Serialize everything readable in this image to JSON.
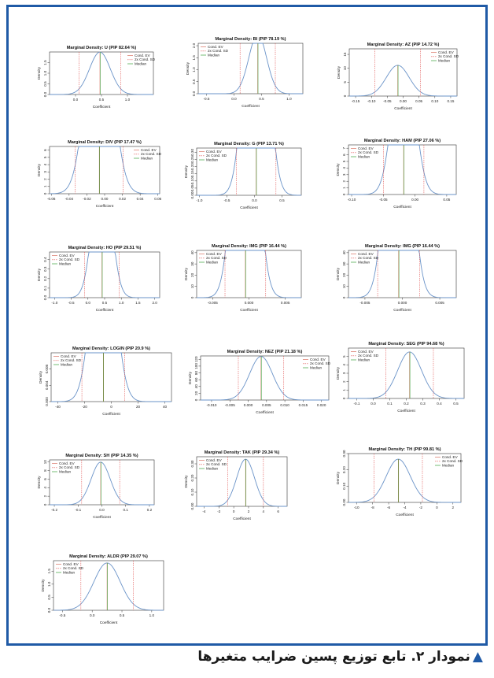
{
  "caption": "نمودار ۲. تابع توزیع پسین ضرایب متغیرها",
  "caption_marker": "▲",
  "colors": {
    "frame": "#1f5aa6",
    "density": "#6a93c8",
    "ev": "#d97060",
    "sd": "#e0504f",
    "median": "#3ca03c"
  },
  "chart_data": [
    {
      "type": "line",
      "title": "Marginal Density: U (PIP 82.64 %)",
      "xlabel": "Coefficient",
      "ylabel": "Density",
      "legend_position": "top-right",
      "legend": [
        "Cond. EV",
        "2x Cond. SD",
        "Median"
      ],
      "mean": 0.47,
      "sd": 0.2,
      "xlim": [
        -0.5,
        1.5
      ],
      "xticks": [
        "0.0",
        "0.5",
        "1.0"
      ],
      "xtick_values": [
        0,
        0.5,
        1.0
      ],
      "ylim": [
        0,
        2.0
      ],
      "yticks": [
        "0.0",
        "0.5",
        "1.0",
        "1.5"
      ],
      "ytick_values": [
        0,
        0.5,
        1.0,
        1.5
      ]
    },
    {
      "type": "line",
      "title": "Marginal Density: BI (PIP 78.19 %)",
      "xlabel": "Coefficient",
      "ylabel": "Density",
      "legend_position": "top-left",
      "legend": [
        "Cond. EV",
        "2x Cond. SD",
        "Median"
      ],
      "mean": 0.43,
      "sd": 0.16,
      "xlim": [
        -0.65,
        1.25
      ],
      "xticks": [
        "-0.5",
        "0.0",
        "0.5",
        "1.0"
      ],
      "xtick_values": [
        -0.5,
        0,
        0.5,
        1.0
      ],
      "ylim": [
        0,
        2.1
      ],
      "yticks": [
        "0.0",
        "0.5",
        "1.0",
        "1.5",
        "2.0"
      ],
      "ytick_values": [
        0,
        0.5,
        1.0,
        1.5,
        2.0
      ]
    },
    {
      "type": "line",
      "title": "Marginal Density: AZ (PIP 14.72 %)",
      "xlabel": "Coefficient",
      "ylabel": "Density",
      "legend_position": "top-right",
      "legend": [
        "Cond. EV",
        "2x Cond. SD",
        "Median"
      ],
      "mean": -0.017,
      "sd": 0.036,
      "xlim": [
        -0.17,
        0.17
      ],
      "xticks": [
        "-0.15",
        "-0.10",
        "-0.05",
        "0.00",
        "0.05",
        "0.10",
        "0.15"
      ],
      "xtick_values": [
        -0.15,
        -0.1,
        -0.05,
        0,
        0.05,
        0.1,
        0.15
      ],
      "ylim": [
        0,
        17
      ],
      "yticks": [
        "0",
        "5",
        "10",
        "15"
      ],
      "ytick_values": [
        0,
        5,
        10,
        15
      ]
    },
    {
      "type": "line",
      "title": "Marginal Density: DIV (PIP 17.47 %)",
      "xlabel": "Coefficient",
      "ylabel": "Density",
      "legend_position": "top-right",
      "legend": [
        "Cond. EV",
        "2x Cond. SD",
        "Median"
      ],
      "mean": -0.006,
      "sd": 0.0135,
      "xlim": [
        -0.062,
        0.062
      ],
      "xticks": [
        "-0.06",
        "-0.04",
        "-0.02",
        "0.00",
        "0.02",
        "0.04",
        "0.06"
      ],
      "xtick_values": [
        -0.06,
        -0.04,
        -0.02,
        0,
        0.02,
        0.04,
        0.06
      ],
      "ylim": [
        0,
        6.5
      ],
      "yticks": [
        "0",
        "1",
        "2",
        "3",
        "4",
        "5",
        "6"
      ],
      "ytick_values": [
        0,
        1,
        2,
        3,
        4,
        5,
        6
      ]
    },
    {
      "type": "line",
      "title": "Marginal Density: G (PIP 13.71 %)",
      "xlabel": "Coefficient",
      "ylabel": "Density",
      "legend_position": "top-left",
      "legend": [
        "Cond. EV",
        "2x Cond. SD",
        "Median"
      ],
      "mean": 0.03,
      "sd": 0.18,
      "xlim": [
        -1.05,
        0.85
      ],
      "xticks": [
        "-1.0",
        "-0.5",
        "0.0",
        "0.5"
      ],
      "xtick_values": [
        -1.0,
        -0.5,
        0,
        0.5
      ],
      "ylim": [
        0,
        0.33
      ],
      "yticks": [
        "0.00",
        "0.05",
        "0.10",
        "0.15",
        "0.20",
        "0.25",
        "0.30"
      ],
      "ytick_values": [
        0,
        0.05,
        0.1,
        0.15,
        0.2,
        0.25,
        0.3
      ]
    },
    {
      "type": "line",
      "title": "Marginal Density: HAM (PIP 27.06 %)",
      "xlabel": "Coefficient",
      "ylabel": "Density",
      "legend_position": "top-left",
      "legend": [
        "Cond. EV",
        "2x Cond. SD",
        "Median"
      ],
      "mean": -0.018,
      "sd": 0.016,
      "xlim": [
        -0.105,
        0.065
      ],
      "xticks": [
        "-0.10",
        "-0.05",
        "0.00",
        "0.05"
      ],
      "xtick_values": [
        -0.1,
        -0.05,
        0,
        0.05
      ],
      "ylim": [
        0,
        7.5
      ],
      "yticks": [
        "0",
        "1",
        "2",
        "3",
        "4",
        "5",
        "6",
        "7"
      ],
      "ytick_values": [
        0,
        1,
        2,
        3,
        4,
        5,
        6,
        7
      ]
    },
    {
      "type": "line",
      "title": "Marginal Density: HO (PIP 29.51 %)",
      "xlabel": "Coefficient",
      "ylabel": "Density",
      "legend_position": "top-left",
      "legend": [
        "Cond. EV",
        "2x Cond. SD",
        "Median"
      ],
      "mean": 0.42,
      "sd": 0.26,
      "xlim": [
        -1.15,
        2.15
      ],
      "xticks": [
        "-1.0",
        "-0.5",
        "0.0",
        "0.5",
        "1.0",
        "1.5",
        "2.0"
      ],
      "xtick_values": [
        -1.0,
        -0.5,
        0,
        0.5,
        1.0,
        1.5,
        2.0
      ],
      "ylim": [
        0,
        0.48
      ],
      "yticks": [
        "0.0",
        "0.1",
        "0.2",
        "0.3",
        "0.4"
      ],
      "ytick_values": [
        0,
        0.1,
        0.2,
        0.3,
        0.4
      ]
    },
    {
      "type": "line",
      "title": "Marginal Density: IMG (PIP 16.44 %)",
      "xlabel": "Coefficient",
      "ylabel": "Density",
      "legend_position": "top-left",
      "legend": [
        "Cond. EV",
        "2x Cond. SD",
        "Median"
      ],
      "mean": -0.0005,
      "sd": 0.0014,
      "xlim": [
        -0.0072,
        0.0072
      ],
      "xticks": [
        "-0.005",
        "0.000",
        "0.005"
      ],
      "xtick_values": [
        -0.005,
        0,
        0.005
      ],
      "ylim": [
        0,
        42
      ],
      "yticks": [
        "0",
        "10",
        "20",
        "30",
        "40"
      ],
      "ytick_values": [
        0,
        10,
        20,
        30,
        40
      ]
    },
    {
      "type": "line",
      "title": "Marginal Density: IMG (PIP 16.44 %)",
      "xlabel": "Coefficient",
      "ylabel": "Density",
      "legend_position": "top-left",
      "legend": [
        "Cond. EV",
        "2x Cond. SD",
        "Median"
      ],
      "mean": -0.0005,
      "sd": 0.0014,
      "xlim": [
        -0.0072,
        0.0072
      ],
      "xticks": [
        "-0.005",
        "0.000",
        "0.005"
      ],
      "xtick_values": [
        -0.005,
        0,
        0.005
      ],
      "ylim": [
        0,
        42
      ],
      "yticks": [
        "0",
        "10",
        "20",
        "30",
        "40"
      ],
      "ytick_values": [
        0,
        10,
        20,
        30,
        40
      ]
    },
    {
      "type": "line",
      "title": "Marginal Density: LOGIN (PIP 20.9 %)",
      "xlabel": "Coefficient",
      "ylabel": "Density",
      "legend_position": "top-left",
      "legend": [
        "Cond. EV",
        "2x Cond. SD",
        "Median"
      ],
      "mean": -6,
      "sd": 8,
      "xlim": [
        -45,
        45
      ],
      "xticks": [
        "-40",
        "-20",
        "0",
        "20",
        "40"
      ],
      "xtick_values": [
        -40,
        -20,
        0,
        20,
        40
      ],
      "ylim": [
        0,
        0.012
      ],
      "yticks": [
        "0.000",
        "0.004",
        "0.008"
      ],
      "ytick_values": [
        0,
        0.004,
        0.008
      ]
    },
    {
      "type": "line",
      "title": "Marginal Density: NEZ (PIP 21.18 %)",
      "xlabel": "Coefficient",
      "ylabel": "Density",
      "legend_position": "top-right",
      "legend": [
        "Cond. EV",
        "2x Cond. SD",
        "Median"
      ],
      "mean": 0.0035,
      "sd": 0.0031,
      "xlim": [
        -0.013,
        0.022
      ],
      "xticks": [
        "-0.010",
        "-0.005",
        "0.000",
        "0.005",
        "0.010",
        "0.015",
        "0.020"
      ],
      "xtick_values": [
        -0.01,
        -0.005,
        0,
        0.005,
        0.01,
        0.015,
        0.02
      ],
      "ylim": [
        0,
        130
      ],
      "yticks": [
        "0",
        "20",
        "40",
        "60",
        "80",
        "100",
        "120"
      ],
      "ytick_values": [
        0,
        20,
        40,
        60,
        80,
        100,
        120
      ]
    },
    {
      "type": "line",
      "title": "Marginal Density: SEG (PIP 94.68 %)",
      "xlabel": "Coefficient",
      "ylabel": "Density",
      "legend_position": "top-left",
      "legend": [
        "Cond. EV",
        "2x Cond. SD",
        "Median"
      ],
      "mean": 0.22,
      "sd": 0.072,
      "xlim": [
        -0.15,
        0.55
      ],
      "xticks": [
        "-0.1",
        "0.0",
        "0.1",
        "0.2",
        "0.3",
        "0.4",
        "0.5"
      ],
      "xtick_values": [
        -0.1,
        0,
        0.1,
        0.2,
        0.3,
        0.4,
        0.5
      ],
      "ylim": [
        0,
        6
      ],
      "yticks": [
        "0",
        "1",
        "2",
        "3",
        "4",
        "5"
      ],
      "ytick_values": [
        0,
        1,
        2,
        3,
        4,
        5
      ]
    },
    {
      "type": "line",
      "title": "Marginal Density: SH (PIP 14.35 %)",
      "xlabel": "Coefficient",
      "ylabel": "Density",
      "legend_position": "top-left",
      "legend": [
        "Cond. EV",
        "2x Cond. SD",
        "Median"
      ],
      "mean": -0.005,
      "sd": 0.04,
      "xlim": [
        -0.22,
        0.22
      ],
      "xticks": [
        "-0.2",
        "-0.1",
        "0.0",
        "0.1",
        "0.2"
      ],
      "xtick_values": [
        -0.2,
        -0.1,
        0,
        0.1,
        0.2
      ],
      "ylim": [
        0,
        10.5
      ],
      "yticks": [
        "0",
        "2",
        "4",
        "6",
        "8",
        "10"
      ],
      "ytick_values": [
        0,
        2,
        4,
        6,
        8,
        10
      ]
    },
    {
      "type": "line",
      "title": "Marginal Density: TAK (PIP 29.34 %)",
      "xlabel": "Coefficient",
      "ylabel": "Density",
      "legend_position": "top-left",
      "legend": [
        "Cond. EV",
        "2x Cond. SD",
        "Median"
      ],
      "mean": 1.6,
      "sd": 1.2,
      "xlim": [
        -5,
        7.2
      ],
      "xticks": [
        "-4",
        "-2",
        "0",
        "2",
        "4",
        "6"
      ],
      "xtick_values": [
        -4,
        -2,
        0,
        2,
        4,
        6
      ],
      "ylim": [
        0,
        0.35
      ],
      "yticks": [
        "0.00",
        "0.10",
        "0.20",
        "0.30"
      ],
      "ytick_values": [
        0,
        0.1,
        0.2,
        0.3
      ]
    },
    {
      "type": "line",
      "title": "Marginal Density: TH (PIP 99.81 %)",
      "xlabel": "Coefficient",
      "ylabel": "Density",
      "legend_position": "top-right",
      "legend": [
        "Cond. EV",
        "2x Cond. SD",
        "Median"
      ],
      "mean": -4.8,
      "sd": 1.5,
      "xlim": [
        -11,
        3
      ],
      "xticks": [
        "-10",
        "-8",
        "-6",
        "-4",
        "-2",
        "0",
        "2"
      ],
      "xtick_values": [
        -10,
        -8,
        -6,
        -4,
        -2,
        0,
        2
      ],
      "ylim": [
        0,
        0.3
      ],
      "yticks": [
        "0.00",
        "0.10",
        "0.20",
        "0.30"
      ],
      "ytick_values": [
        0,
        0.1,
        0.2,
        0.3
      ]
    },
    {
      "type": "line",
      "title": "Marginal Density: ALDR (PIP 29.07 %)",
      "xlabel": "Coefficient",
      "ylabel": "Density",
      "legend_position": "top-left",
      "legend": [
        "Cond. EV",
        "2x Cond. SD",
        "Median"
      ],
      "mean": 0.25,
      "sd": 0.22,
      "xlim": [
        -0.65,
        1.2
      ],
      "xticks": [
        "-0.5",
        "0.0",
        "0.5",
        "1.0"
      ],
      "xtick_values": [
        -0.5,
        0,
        0.5,
        1.0
      ],
      "ylim": [
        0,
        1.9
      ],
      "yticks": [
        "0.0",
        "0.5",
        "1.0",
        "1.5"
      ],
      "ytick_values": [
        0,
        0.5,
        1.0,
        1.5
      ]
    }
  ]
}
